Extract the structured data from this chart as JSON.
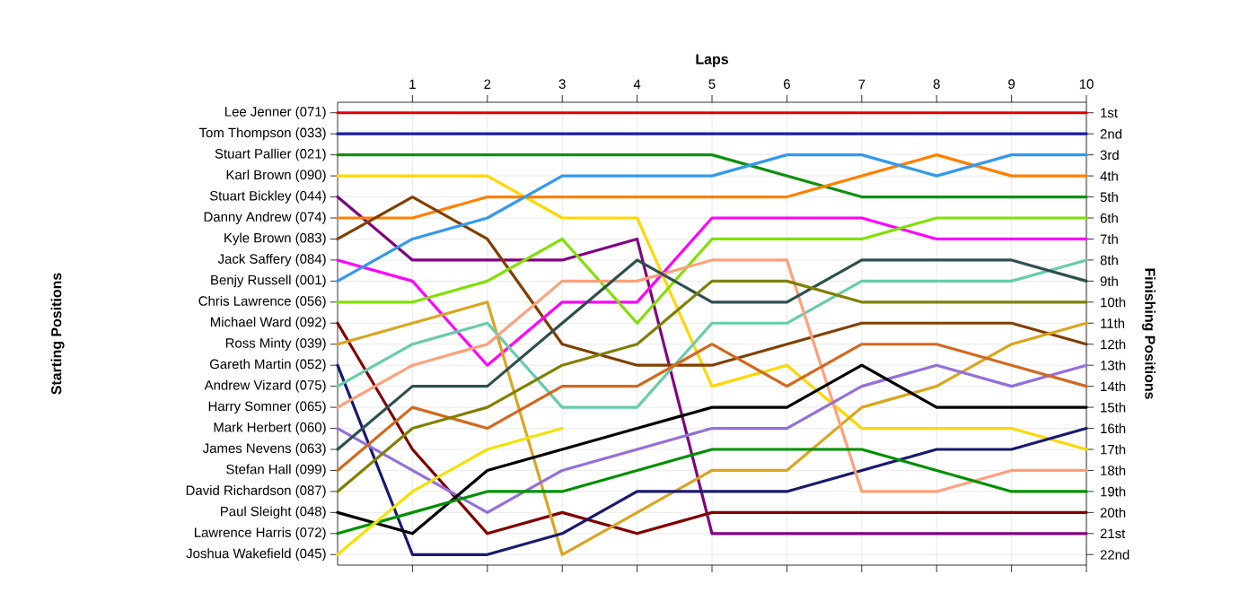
{
  "chart_data": {
    "type": "line",
    "xlabel": "Laps",
    "ylabel": "Finishing Positions",
    "x": [
      0,
      1,
      2,
      3,
      4,
      5,
      6,
      7,
      8,
      9,
      10
    ],
    "xlim": [
      0,
      10
    ],
    "xticks": [
      1,
      2,
      3,
      4,
      5,
      6,
      7,
      8,
      9,
      10
    ],
    "annotations": [
      "Starting Positions",
      "Lee Jenner (071)",
      "Tom Thompson (033)",
      "Stuart Pallier (021)",
      "Karl Brown (090)",
      "Stuart Bickley (044)",
      "Danny Andrew (074)",
      "Kyle Brown (083)",
      "Jack Saffery (084)",
      "Benjy Russell (001)",
      "Chris Lawrence (056)",
      "Michael Ward (092)",
      "Ross Minty (039)",
      "Gareth Martin (052)",
      "Andrew Vizard (075)",
      "Harry Somner (065)",
      "Mark Herbert (060)",
      "James Nevens (063)",
      "Stefan Hall (099)",
      "David Richardson (087)",
      "Paul Sleight (048)",
      "Lawrence Harris (072)",
      "Joshua Wakefield (045)"
    ],
    "ylim": [
      22.5,
      0.5
    ],
    "yticks": [
      {
        "value": 1,
        "label": "1st"
      },
      {
        "value": 2,
        "label": "2nd"
      },
      {
        "value": 3,
        "label": "3rd"
      },
      {
        "value": 4,
        "label": "4th"
      },
      {
        "value": 5,
        "label": "5th"
      },
      {
        "value": 6,
        "label": "6th"
      },
      {
        "value": 7,
        "label": "7th"
      },
      {
        "value": 8,
        "label": "8th"
      },
      {
        "value": 9,
        "label": "9th"
      },
      {
        "value": 10,
        "label": "10th"
      },
      {
        "value": 11,
        "label": "11th"
      },
      {
        "value": 12,
        "label": "12th"
      },
      {
        "value": 13,
        "label": "13th"
      },
      {
        "value": 14,
        "label": "14th"
      },
      {
        "value": 15,
        "label": "15th"
      },
      {
        "value": 16,
        "label": "16th"
      },
      {
        "value": 17,
        "label": "17th"
      },
      {
        "value": 18,
        "label": "18th"
      },
      {
        "value": 19,
        "label": "19th"
      },
      {
        "value": 20,
        "label": "20th"
      },
      {
        "value": 21,
        "label": "21st"
      },
      {
        "value": 22,
        "label": "22nd"
      }
    ],
    "grid": true,
    "series": [
      {
        "color": "#e00000",
        "values": [
          1,
          1,
          1,
          1,
          1,
          1,
          1,
          1,
          1,
          1,
          1
        ]
      },
      {
        "color": "#1a1ab0",
        "values": [
          2,
          2,
          2,
          2,
          2,
          2,
          2,
          2,
          2,
          2,
          2
        ]
      },
      {
        "color": "#109010",
        "values": [
          3,
          3,
          3,
          3,
          3,
          3,
          4,
          5,
          5,
          5,
          5
        ]
      },
      {
        "color": "#ffd700",
        "values": [
          4,
          4,
          4,
          6,
          6,
          14,
          13,
          16,
          16,
          16,
          17
        ]
      },
      {
        "color": "#800080",
        "values": [
          5,
          8,
          8,
          8,
          7,
          21,
          21,
          21,
          21,
          21,
          21
        ]
      },
      {
        "color": "#ff8000",
        "values": [
          6,
          6,
          5,
          5,
          5,
          5,
          5,
          4,
          3,
          4,
          4
        ]
      },
      {
        "color": "#804000",
        "values": [
          7,
          5,
          7,
          12,
          13,
          13,
          12,
          11,
          11,
          11,
          12
        ]
      },
      {
        "color": "#ff00ff",
        "values": [
          8,
          9,
          13,
          10,
          10,
          6,
          6,
          6,
          7,
          7,
          7
        ]
      },
      {
        "color": "#3399ee",
        "values": [
          9,
          7,
          6,
          4,
          4,
          4,
          3,
          3,
          4,
          3,
          3
        ]
      },
      {
        "color": "#80e000",
        "values": [
          10,
          10,
          9,
          7,
          11,
          7,
          7,
          7,
          6,
          6,
          6
        ]
      },
      {
        "color": "#800000",
        "values": [
          11,
          17,
          21,
          20,
          21,
          20,
          20,
          20,
          20,
          20,
          20
        ]
      },
      {
        "color": "#daa520",
        "values": [
          12,
          11,
          10,
          22,
          20,
          18,
          18,
          15,
          14,
          12,
          11
        ]
      },
      {
        "color": "#191970",
        "values": [
          13,
          22,
          22,
          21,
          19,
          19,
          19,
          18,
          17,
          17,
          16
        ]
      },
      {
        "color": "#66cdaa",
        "values": [
          14,
          12,
          11,
          15,
          15,
          11,
          11,
          9,
          9,
          9,
          8
        ]
      },
      {
        "color": "#ffa07a",
        "values": [
          15,
          13,
          12,
          9,
          9,
          8,
          8,
          19,
          19,
          18,
          18
        ]
      },
      {
        "color": "#9370db",
        "values": [
          16,
          18,
          20,
          18,
          17,
          16,
          16,
          14,
          13,
          14,
          13
        ]
      },
      {
        "color": "#2f4f4f",
        "values": [
          17,
          14,
          14,
          11,
          8,
          10,
          10,
          8,
          8,
          8,
          9
        ]
      },
      {
        "color": "#d2691e",
        "values": [
          18,
          15,
          16,
          14,
          14,
          12,
          14,
          12,
          12,
          13,
          14
        ]
      },
      {
        "color": "#808000",
        "values": [
          19,
          16,
          15,
          13,
          12,
          9,
          9,
          10,
          10,
          10,
          10
        ]
      },
      {
        "color": "#000000",
        "values": [
          20,
          21,
          18,
          17,
          16,
          15,
          15,
          13,
          15,
          15,
          15
        ]
      },
      {
        "color": "#009000",
        "values": [
          21,
          20,
          19,
          19,
          18,
          17,
          17,
          17,
          18,
          19,
          19
        ]
      },
      {
        "color": "#f5e100",
        "values": [
          22,
          19,
          17,
          16,
          null,
          null,
          null,
          null,
          null,
          null,
          null
        ]
      }
    ]
  }
}
